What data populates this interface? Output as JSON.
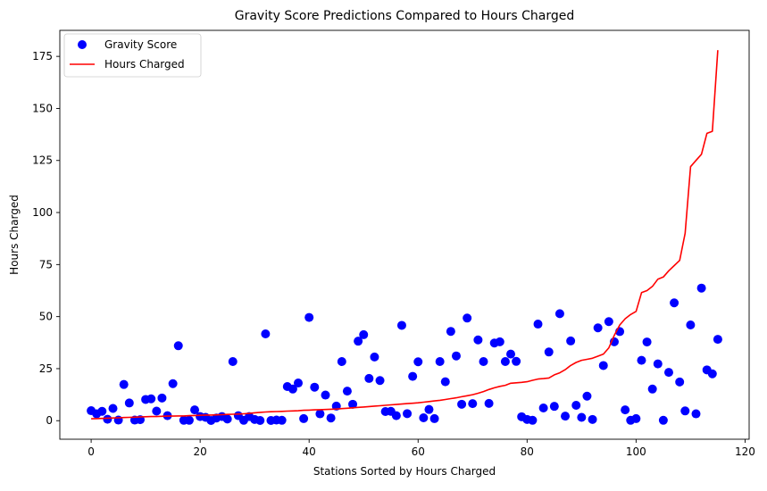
{
  "chart_data": {
    "type": "scatter+line",
    "title": "Gravity Score Predictions Compared to Hours Charged",
    "xlabel": "Stations Sorted by Hours Charged",
    "ylabel": "Hours Charged",
    "xlim": [
      -5.75,
      120.75
    ],
    "ylim": [
      -8.9,
      187.5
    ],
    "xticks": [
      0,
      20,
      40,
      60,
      80,
      100,
      120
    ],
    "yticks": [
      0,
      25,
      50,
      75,
      100,
      125,
      150,
      175
    ],
    "grid": false,
    "legend_position": "top-left",
    "series": [
      {
        "name": "Gravity Score",
        "kind": "scatter",
        "color": "#0000ff",
        "x": [
          0,
          1,
          2,
          3,
          4,
          5,
          6,
          7,
          8,
          9,
          10,
          11,
          12,
          13,
          14,
          15,
          16,
          17,
          18,
          19,
          20,
          21,
          22,
          23,
          24,
          25,
          26,
          27,
          28,
          29,
          30,
          31,
          32,
          33,
          34,
          35,
          36,
          37,
          38,
          39,
          40,
          41,
          42,
          43,
          44,
          45,
          46,
          47,
          48,
          49,
          50,
          51,
          52,
          53,
          54,
          55,
          56,
          57,
          58,
          59,
          60,
          61,
          62,
          63,
          64,
          65,
          66,
          67,
          68,
          69,
          70,
          71,
          72,
          73,
          74,
          75,
          76,
          77,
          78,
          79,
          80,
          81,
          82,
          83,
          84,
          85,
          86,
          87,
          88,
          89,
          90,
          91,
          92,
          93,
          94,
          95,
          96,
          97,
          98,
          99,
          100,
          101,
          102,
          103,
          104,
          105,
          106,
          107,
          108,
          109,
          110,
          111,
          112,
          113,
          114,
          115
        ],
        "values": [
          4.8,
          3.3,
          4.5,
          0.7,
          5.9,
          0.3,
          17.4,
          8.5,
          0.3,
          0.5,
          10.2,
          10.5,
          4.6,
          10.9,
          2.4,
          17.8,
          36.0,
          0.2,
          0.2,
          5.2,
          2.0,
          1.6,
          0.1,
          1.3,
          2.0,
          0.8,
          28.4,
          2.4,
          0.2,
          2.0,
          0.6,
          0.1,
          41.7,
          0.1,
          0.3,
          0.2,
          16.4,
          15.2,
          18.1,
          1.0,
          49.6,
          16.1,
          3.3,
          12.3,
          1.3,
          7.0,
          28.4,
          14.2,
          7.9,
          38.2,
          41.3,
          20.3,
          30.6,
          19.3,
          4.4,
          4.5,
          2.4,
          45.8,
          3.4,
          21.3,
          28.3,
          1.4,
          5.4,
          1.0,
          28.4,
          18.7,
          42.9,
          31.1,
          7.9,
          49.3,
          8.2,
          38.8,
          28.4,
          8.3,
          37.3,
          37.9,
          28.4,
          32.0,
          28.5,
          1.9,
          0.6,
          0.2,
          46.4,
          6.1,
          33.0,
          6.9,
          51.4,
          2.2,
          38.3,
          7.4,
          1.6,
          11.8,
          0.6,
          44.6,
          26.5,
          47.6,
          37.9,
          42.8,
          5.2,
          0.2,
          1.0,
          29.0,
          37.8,
          15.2,
          27.3,
          0.2,
          23.2,
          56.6,
          18.6,
          4.7,
          46.0,
          3.3,
          63.7,
          24.4,
          22.5,
          39.1
        ]
      },
      {
        "name": "Hours Charged",
        "kind": "line",
        "color": "#ff0000",
        "x": [
          0,
          1,
          2,
          3,
          4,
          5,
          6,
          7,
          8,
          9,
          10,
          11,
          12,
          13,
          14,
          15,
          16,
          17,
          18,
          19,
          20,
          21,
          22,
          23,
          24,
          25,
          26,
          27,
          28,
          29,
          30,
          31,
          32,
          33,
          34,
          35,
          36,
          37,
          38,
          39,
          40,
          41,
          42,
          43,
          44,
          45,
          46,
          47,
          48,
          49,
          50,
          51,
          52,
          53,
          54,
          55,
          56,
          57,
          58,
          59,
          60,
          61,
          62,
          63,
          64,
          65,
          66,
          67,
          68,
          69,
          70,
          71,
          72,
          73,
          74,
          75,
          76,
          77,
          78,
          79,
          80,
          81,
          82,
          83,
          84,
          85,
          86,
          87,
          88,
          89,
          90,
          91,
          92,
          93,
          94,
          95,
          96,
          97,
          98,
          99,
          100,
          101,
          102,
          103,
          104,
          105,
          106,
          107,
          108,
          109,
          110,
          111,
          112,
          113,
          114,
          115
        ],
        "values": [
          0.9,
          1.0,
          1.1,
          1.2,
          1.3,
          1.4,
          1.5,
          1.6,
          1.7,
          1.8,
          1.9,
          2.0,
          2.0,
          2.1,
          2.2,
          2.2,
          2.3,
          2.3,
          2.4,
          2.5,
          2.6,
          2.7,
          2.7,
          2.8,
          2.9,
          3.0,
          3.1,
          3.2,
          3.3,
          3.5,
          3.8,
          4.0,
          4.2,
          4.3,
          4.4,
          4.5,
          4.6,
          4.7,
          4.8,
          5.0,
          5.1,
          5.2,
          5.3,
          5.4,
          5.5,
          5.6,
          5.8,
          6.0,
          6.2,
          6.4,
          6.6,
          6.8,
          7.0,
          7.2,
          7.4,
          7.6,
          7.8,
          8.0,
          8.2,
          8.4,
          8.6,
          8.9,
          9.2,
          9.5,
          9.8,
          10.2,
          10.6,
          11.0,
          11.5,
          12.0,
          12.5,
          13.2,
          14.0,
          15.0,
          15.8,
          16.5,
          17.0,
          18.0,
          18.2,
          18.4,
          18.7,
          19.4,
          20.0,
          20.2,
          20.5,
          22.0,
          23.0,
          24.5,
          26.5,
          28.0,
          29.0,
          29.5,
          30.0,
          31.0,
          32.0,
          35.0,
          41.0,
          46.0,
          49.0,
          51.0,
          52.5,
          61.5,
          62.5,
          64.5,
          68.0,
          69.0,
          72.0,
          74.5,
          77.0,
          90.0,
          122.0,
          125.0,
          128.0,
          138.0,
          139.0,
          178.0
        ]
      }
    ]
  }
}
